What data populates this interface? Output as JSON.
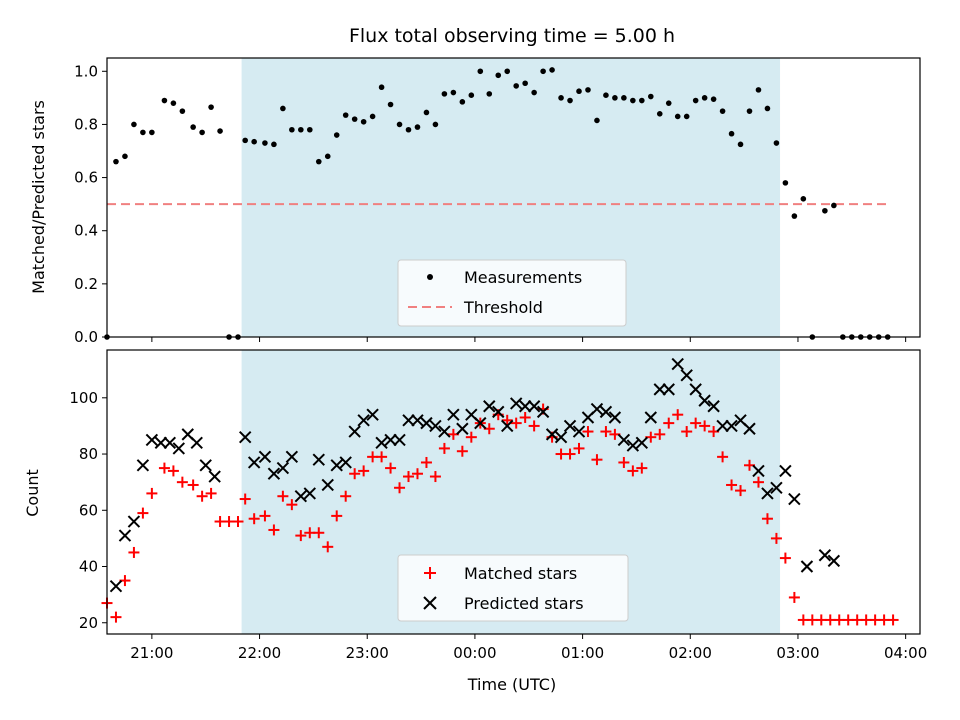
{
  "chart_data": [
    {
      "type": "scatter",
      "title": "Flux total observing time = 5.00 h",
      "ylabel": "Matched/Predicted stars",
      "xlabel": "",
      "x_unit": "UTC clock time, hours past midnight of first night (21:00 = 21.0, 00:00 = 24.0)",
      "xlim": [
        "20:35",
        "04:08"
      ],
      "ylim": [
        0,
        1.05
      ],
      "yticks": [
        "0.0",
        "0.2",
        "0.4",
        "0.6",
        "0.8",
        "1.0"
      ],
      "xticks": [
        "21:00",
        "22:00",
        "23:00",
        "00:00",
        "01:00",
        "02:00",
        "03:00",
        "04:00"
      ],
      "shaded_interval": [
        "21:50",
        "02:50"
      ],
      "shade_color": "#add8e6",
      "legend": {
        "placement": "lower-center",
        "entries": [
          "Measurements",
          "Threshold"
        ]
      },
      "threshold": {
        "name": "Threshold",
        "value": 0.5,
        "x_range": [
          "20:35",
          "03:50"
        ],
        "color": "#f08080"
      },
      "series": [
        {
          "name": "Measurements",
          "color": "#000000",
          "points": [
            [
              "20:35",
              0.0
            ],
            [
              "20:40",
              0.66
            ],
            [
              "20:45",
              0.68
            ],
            [
              "20:50",
              0.8
            ],
            [
              "20:55",
              0.77
            ],
            [
              "21:00",
              0.77
            ],
            [
              "21:07",
              0.89
            ],
            [
              "21:12",
              0.88
            ],
            [
              "21:17",
              0.85
            ],
            [
              "21:23",
              0.79
            ],
            [
              "21:28",
              0.77
            ],
            [
              "21:33",
              0.865
            ],
            [
              "21:38",
              0.775
            ],
            [
              "21:43",
              0.0
            ],
            [
              "21:48",
              0.0
            ],
            [
              "21:52",
              0.74
            ],
            [
              "21:57",
              0.735
            ],
            [
              "22:03",
              0.73
            ],
            [
              "22:08",
              0.725
            ],
            [
              "22:13",
              0.86
            ],
            [
              "22:18",
              0.78
            ],
            [
              "22:23",
              0.78
            ],
            [
              "22:28",
              0.78
            ],
            [
              "22:33",
              0.66
            ],
            [
              "22:38",
              0.68
            ],
            [
              "22:43",
              0.76
            ],
            [
              "22:48",
              0.835
            ],
            [
              "22:53",
              0.82
            ],
            [
              "22:58",
              0.81
            ],
            [
              "23:03",
              0.83
            ],
            [
              "23:08",
              0.94
            ],
            [
              "23:13",
              0.875
            ],
            [
              "23:18",
              0.8
            ],
            [
              "23:23",
              0.78
            ],
            [
              "23:28",
              0.79
            ],
            [
              "23:33",
              0.845
            ],
            [
              "23:38",
              0.8
            ],
            [
              "23:43",
              0.915
            ],
            [
              "23:48",
              0.92
            ],
            [
              "23:53",
              0.885
            ],
            [
              "23:58",
              0.91
            ],
            [
              "00:03",
              1.0
            ],
            [
              "00:08",
              0.915
            ],
            [
              "00:13",
              0.985
            ],
            [
              "00:18",
              1.0
            ],
            [
              "00:23",
              0.945
            ],
            [
              "00:28",
              0.955
            ],
            [
              "00:33",
              0.92
            ],
            [
              "00:38",
              1.0
            ],
            [
              "00:43",
              1.005
            ],
            [
              "00:48",
              0.9
            ],
            [
              "00:53",
              0.89
            ],
            [
              "00:58",
              0.925
            ],
            [
              "01:03",
              0.93
            ],
            [
              "01:08",
              0.815
            ],
            [
              "01:13",
              0.91
            ],
            [
              "01:18",
              0.9
            ],
            [
              "01:23",
              0.9
            ],
            [
              "01:28",
              0.89
            ],
            [
              "01:33",
              0.89
            ],
            [
              "01:38",
              0.905
            ],
            [
              "01:43",
              0.84
            ],
            [
              "01:48",
              0.88
            ],
            [
              "01:53",
              0.83
            ],
            [
              "01:58",
              0.83
            ],
            [
              "02:03",
              0.89
            ],
            [
              "02:08",
              0.9
            ],
            [
              "02:13",
              0.895
            ],
            [
              "02:18",
              0.85
            ],
            [
              "02:23",
              0.765
            ],
            [
              "02:28",
              0.725
            ],
            [
              "02:33",
              0.85
            ],
            [
              "02:38",
              0.93
            ],
            [
              "02:43",
              0.86
            ],
            [
              "02:48",
              0.73
            ],
            [
              "02:53",
              0.58
            ],
            [
              "02:58",
              0.455
            ],
            [
              "03:03",
              0.52
            ],
            [
              "03:08",
              0.0
            ],
            [
              "03:15",
              0.475
            ],
            [
              "03:20",
              0.495
            ],
            [
              "03:25",
              0.0
            ],
            [
              "03:30",
              0.0
            ],
            [
              "03:35",
              0.0
            ],
            [
              "03:40",
              0.0
            ],
            [
              "03:45",
              0.0
            ],
            [
              "03:50",
              0.0
            ]
          ]
        }
      ]
    },
    {
      "type": "scatter",
      "title": "",
      "xlabel": "Time (UTC)",
      "ylabel": "Count",
      "x_unit": "UTC clock time, hours past midnight of first night (21:00 = 21.0, 00:00 = 24.0)",
      "xlim": [
        "20:35",
        "04:08"
      ],
      "ylim": [
        16,
        117
      ],
      "yticks": [
        "20",
        "40",
        "60",
        "80",
        "100"
      ],
      "xticks": [
        "21:00",
        "22:00",
        "23:00",
        "00:00",
        "01:00",
        "02:00",
        "03:00",
        "04:00"
      ],
      "shaded_interval": [
        "21:50",
        "02:50"
      ],
      "shade_color": "#add8e6",
      "legend": {
        "placement": "lower-center",
        "entries": [
          "Matched stars",
          "Predicted stars"
        ]
      },
      "series": [
        {
          "name": "Matched stars",
          "marker": "plus",
          "color": "#ff0000",
          "points": [
            [
              "20:35",
              27
            ],
            [
              "20:40",
              22
            ],
            [
              "20:45",
              35
            ],
            [
              "20:50",
              45
            ],
            [
              "20:55",
              59
            ],
            [
              "21:00",
              66
            ],
            [
              "21:07",
              75
            ],
            [
              "21:12",
              74
            ],
            [
              "21:17",
              70
            ],
            [
              "21:23",
              69
            ],
            [
              "21:28",
              65
            ],
            [
              "21:33",
              66
            ],
            [
              "21:38",
              56
            ],
            [
              "21:43",
              56
            ],
            [
              "21:48",
              56
            ],
            [
              "21:52",
              64
            ],
            [
              "21:57",
              57
            ],
            [
              "22:03",
              58
            ],
            [
              "22:08",
              53
            ],
            [
              "22:13",
              65
            ],
            [
              "22:18",
              62
            ],
            [
              "22:23",
              51
            ],
            [
              "22:28",
              52
            ],
            [
              "22:33",
              52
            ],
            [
              "22:38",
              47
            ],
            [
              "22:43",
              58
            ],
            [
              "22:48",
              65
            ],
            [
              "22:53",
              73
            ],
            [
              "22:58",
              74
            ],
            [
              "23:03",
              79
            ],
            [
              "23:08",
              79
            ],
            [
              "23:13",
              75
            ],
            [
              "23:18",
              68
            ],
            [
              "23:23",
              72
            ],
            [
              "23:28",
              73
            ],
            [
              "23:33",
              77
            ],
            [
              "23:38",
              72
            ],
            [
              "23:43",
              82
            ],
            [
              "23:48",
              87
            ],
            [
              "23:53",
              81
            ],
            [
              "23:58",
              86
            ],
            [
              "00:03",
              91
            ],
            [
              "00:08",
              89
            ],
            [
              "00:13",
              94
            ],
            [
              "00:18",
              92
            ],
            [
              "00:23",
              91
            ],
            [
              "00:28",
              93
            ],
            [
              "00:33",
              90
            ],
            [
              "00:38",
              96
            ],
            [
              "00:43",
              86
            ],
            [
              "00:48",
              80
            ],
            [
              "00:53",
              80
            ],
            [
              "00:58",
              82
            ],
            [
              "01:03",
              88
            ],
            [
              "01:08",
              78
            ],
            [
              "01:13",
              88
            ],
            [
              "01:18",
              87
            ],
            [
              "01:23",
              77
            ],
            [
              "01:28",
              74
            ],
            [
              "01:33",
              75
            ],
            [
              "01:38",
              86
            ],
            [
              "01:43",
              87
            ],
            [
              "01:48",
              91
            ],
            [
              "01:53",
              94
            ],
            [
              "01:58",
              88
            ],
            [
              "02:03",
              91
            ],
            [
              "02:08",
              90
            ],
            [
              "02:13",
              88
            ],
            [
              "02:18",
              79
            ],
            [
              "02:23",
              69
            ],
            [
              "02:28",
              67
            ],
            [
              "02:33",
              76
            ],
            [
              "02:38",
              70
            ],
            [
              "02:43",
              57
            ],
            [
              "02:48",
              50
            ],
            [
              "02:53",
              43
            ],
            [
              "02:58",
              29
            ],
            [
              "03:03",
              21
            ],
            [
              "03:08",
              21
            ],
            [
              "03:13",
              21
            ],
            [
              "03:18",
              21
            ],
            [
              "03:23",
              21
            ],
            [
              "03:28",
              21
            ],
            [
              "03:33",
              21
            ],
            [
              "03:38",
              21
            ],
            [
              "03:43",
              21
            ],
            [
              "03:48",
              21
            ],
            [
              "03:53",
              21
            ]
          ]
        },
        {
          "name": "Predicted stars",
          "marker": "x",
          "color": "#000000",
          "points": [
            [
              "20:40",
              33
            ],
            [
              "20:45",
              51
            ],
            [
              "20:50",
              56
            ],
            [
              "20:55",
              76
            ],
            [
              "21:00",
              85
            ],
            [
              "21:05",
              84
            ],
            [
              "21:10",
              84
            ],
            [
              "21:15",
              82
            ],
            [
              "21:20",
              87
            ],
            [
              "21:25",
              84
            ],
            [
              "21:30",
              76
            ],
            [
              "21:35",
              72
            ],
            [
              "21:52",
              86
            ],
            [
              "21:57",
              77
            ],
            [
              "22:03",
              79
            ],
            [
              "22:08",
              73
            ],
            [
              "22:13",
              75
            ],
            [
              "22:18",
              79
            ],
            [
              "22:23",
              65
            ],
            [
              "22:28",
              66
            ],
            [
              "22:33",
              78
            ],
            [
              "22:38",
              69
            ],
            [
              "22:43",
              76
            ],
            [
              "22:48",
              77
            ],
            [
              "22:53",
              88
            ],
            [
              "22:58",
              92
            ],
            [
              "23:03",
              94
            ],
            [
              "23:08",
              84
            ],
            [
              "23:13",
              85
            ],
            [
              "23:18",
              85
            ],
            [
              "23:23",
              92
            ],
            [
              "23:28",
              92
            ],
            [
              "23:33",
              91
            ],
            [
              "23:38",
              90
            ],
            [
              "23:43",
              88
            ],
            [
              "23:48",
              94
            ],
            [
              "23:53",
              89
            ],
            [
              "23:58",
              94
            ],
            [
              "00:03",
              91
            ],
            [
              "00:08",
              97
            ],
            [
              "00:13",
              95
            ],
            [
              "00:18",
              90
            ],
            [
              "00:23",
              98
            ],
            [
              "00:28",
              97
            ],
            [
              "00:33",
              97
            ],
            [
              "00:38",
              95
            ],
            [
              "00:43",
              87
            ],
            [
              "00:48",
              86
            ],
            [
              "00:53",
              90
            ],
            [
              "00:58",
              88
            ],
            [
              "01:03",
              93
            ],
            [
              "01:08",
              96
            ],
            [
              "01:13",
              95
            ],
            [
              "01:18",
              93
            ],
            [
              "01:23",
              85
            ],
            [
              "01:28",
              83
            ],
            [
              "01:33",
              84
            ],
            [
              "01:38",
              93
            ],
            [
              "01:43",
              103
            ],
            [
              "01:48",
              103
            ],
            [
              "01:53",
              112
            ],
            [
              "01:58",
              108
            ],
            [
              "02:03",
              103
            ],
            [
              "02:08",
              99
            ],
            [
              "02:13",
              97
            ],
            [
              "02:18",
              90
            ],
            [
              "02:23",
              90
            ],
            [
              "02:28",
              92
            ],
            [
              "02:33",
              89
            ],
            [
              "02:38",
              74
            ],
            [
              "02:43",
              66
            ],
            [
              "02:48",
              68
            ],
            [
              "02:53",
              74
            ],
            [
              "02:58",
              64
            ],
            [
              "03:05",
              40
            ],
            [
              "03:15",
              44
            ],
            [
              "03:20",
              42
            ]
          ]
        }
      ]
    }
  ]
}
